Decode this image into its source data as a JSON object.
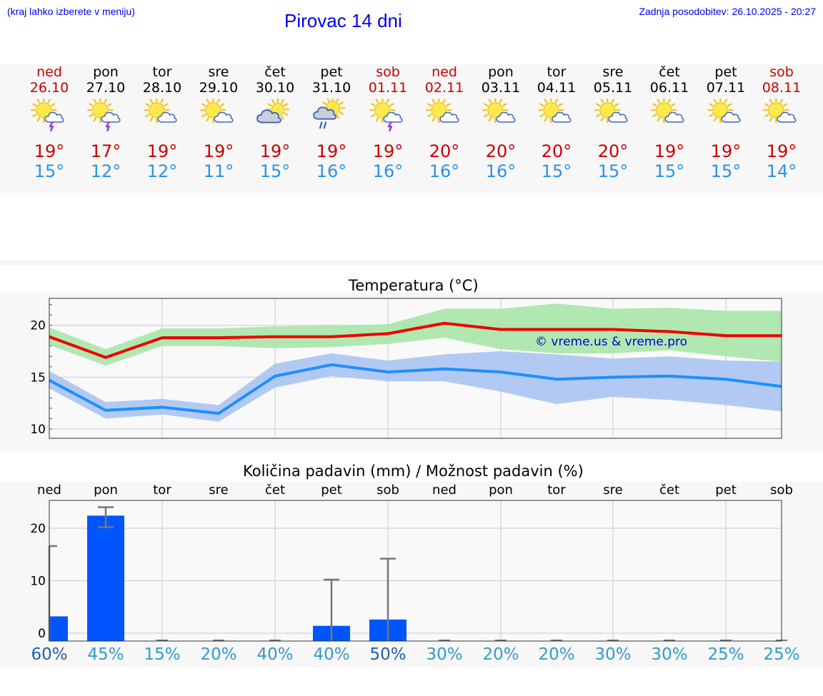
{
  "header": {
    "menu_hint": "(kraj lahko izberete v meniju)",
    "title": "Pirovac 14 dni",
    "last_update": "Zadnja posodobitev: 26.10.2025 - 20:27"
  },
  "colors": {
    "max_line": "#ee0000",
    "max_band": "#a9e5a9",
    "min_line": "#1e8fff",
    "min_band": "#aac4f2",
    "bar": "#0055ff",
    "weekend_text": "#cc0000",
    "link_blue": "#0000ee"
  },
  "days": [
    {
      "name": "ned",
      "date": "26.10",
      "weekend": true,
      "icon": "sun-thunderstorm",
      "max": "19°",
      "min": "15°"
    },
    {
      "name": "pon",
      "date": "27.10",
      "weekend": false,
      "icon": "sun-thunderstorm",
      "max": "17°",
      "min": "12°"
    },
    {
      "name": "tor",
      "date": "28.10",
      "weekend": false,
      "icon": "sun-cloud",
      "max": "19°",
      "min": "12°"
    },
    {
      "name": "sre",
      "date": "29.10",
      "weekend": false,
      "icon": "sun-cloud",
      "max": "19°",
      "min": "11°"
    },
    {
      "name": "čet",
      "date": "30.10",
      "weekend": false,
      "icon": "cloud-sun",
      "max": "19°",
      "min": "15°"
    },
    {
      "name": "pet",
      "date": "31.10",
      "weekend": false,
      "icon": "sun-cloud-rain",
      "max": "19°",
      "min": "16°"
    },
    {
      "name": "sob",
      "date": "01.11",
      "weekend": true,
      "icon": "sun-thunderstorm",
      "max": "19°",
      "min": "16°"
    },
    {
      "name": "ned",
      "date": "02.11",
      "weekend": true,
      "icon": "sun-cloud",
      "max": "20°",
      "min": "16°"
    },
    {
      "name": "pon",
      "date": "03.11",
      "weekend": false,
      "icon": "sun-cloud",
      "max": "20°",
      "min": "16°"
    },
    {
      "name": "tor",
      "date": "04.11",
      "weekend": false,
      "icon": "sun-cloud",
      "max": "20°",
      "min": "15°"
    },
    {
      "name": "sre",
      "date": "05.11",
      "weekend": false,
      "icon": "sun-cloud",
      "max": "20°",
      "min": "15°"
    },
    {
      "name": "čet",
      "date": "06.11",
      "weekend": false,
      "icon": "sun-cloud",
      "max": "19°",
      "min": "15°"
    },
    {
      "name": "pet",
      "date": "07.11",
      "weekend": false,
      "icon": "sun-cloud",
      "max": "19°",
      "min": "15°"
    },
    {
      "name": "sob",
      "date": "08.11",
      "weekend": true,
      "icon": "sun-cloud",
      "max": "19°",
      "min": "14°"
    }
  ],
  "chart_data": [
    {
      "type": "line",
      "title": "Temperatura (°C)",
      "ylim": [
        9.1,
        22.6
      ],
      "yticks": [
        "10",
        "15",
        "20"
      ],
      "watermark": "© vreme.us & vreme.pro",
      "grid": true,
      "series": [
        {
          "name": "max",
          "values": [
            18.9,
            16.9,
            18.8,
            18.8,
            18.9,
            18.9,
            19.2,
            20.2,
            19.6,
            19.6,
            19.6,
            19.4,
            19.0,
            19.0
          ],
          "band_low": [
            18.1,
            16.1,
            18.0,
            18.0,
            17.8,
            17.9,
            18.2,
            18.8,
            17.7,
            17.3,
            17.3,
            17.6,
            17.0,
            16.5
          ],
          "band_high": [
            19.8,
            17.7,
            19.7,
            19.7,
            19.9,
            20.0,
            20.1,
            21.6,
            21.6,
            22.1,
            21.6,
            21.7,
            21.4,
            21.4
          ]
        },
        {
          "name": "min",
          "values": [
            14.7,
            11.8,
            12.1,
            11.5,
            15.1,
            16.2,
            15.5,
            15.8,
            15.5,
            14.8,
            15.0,
            15.1,
            14.8,
            14.1
          ],
          "band_low": [
            13.9,
            11.0,
            11.4,
            10.7,
            14.0,
            15.1,
            14.6,
            14.6,
            13.6,
            12.4,
            13.1,
            12.8,
            12.3,
            11.7
          ],
          "band_high": [
            15.6,
            12.6,
            12.9,
            12.3,
            16.3,
            17.3,
            16.6,
            17.2,
            17.5,
            17.2,
            16.8,
            17.0,
            16.6,
            16.5
          ]
        }
      ]
    },
    {
      "type": "bar",
      "title": "Količina padavin (mm) / Možnost padavin (%)",
      "categories": [
        "ned",
        "pon",
        "tor",
        "sre",
        "čet",
        "pet",
        "sob",
        "ned",
        "pon",
        "tor",
        "sre",
        "čet",
        "pet",
        "sob"
      ],
      "ylim": [
        -1.5,
        25.3
      ],
      "yticks": [
        "0",
        "10",
        "20"
      ],
      "grid": true,
      "values": [
        3.2,
        22.4,
        0,
        0,
        0,
        1.4,
        2.6,
        0,
        0,
        0,
        0,
        0,
        0,
        0
      ],
      "error_high": [
        16.6,
        24.0,
        0,
        0,
        0,
        10.2,
        14.2,
        0,
        0,
        0,
        0,
        0,
        0,
        0
      ],
      "error_low": [
        0,
        20.2,
        0,
        0,
        0,
        0,
        0,
        0,
        0,
        0,
        0,
        0,
        0,
        0
      ],
      "probability": [
        "60%",
        "45%",
        "15%",
        "20%",
        "40%",
        "40%",
        "50%",
        "30%",
        "20%",
        "20%",
        "30%",
        "30%",
        "25%",
        "25%"
      ],
      "probability_colors": [
        "#1f5fae",
        "#3399cc",
        "#3399cc",
        "#3399cc",
        "#3399cc",
        "#3399cc",
        "#1f5fae",
        "#3399cc",
        "#3399cc",
        "#3399cc",
        "#3399cc",
        "#3399cc",
        "#3399cc",
        "#3399cc"
      ]
    }
  ]
}
